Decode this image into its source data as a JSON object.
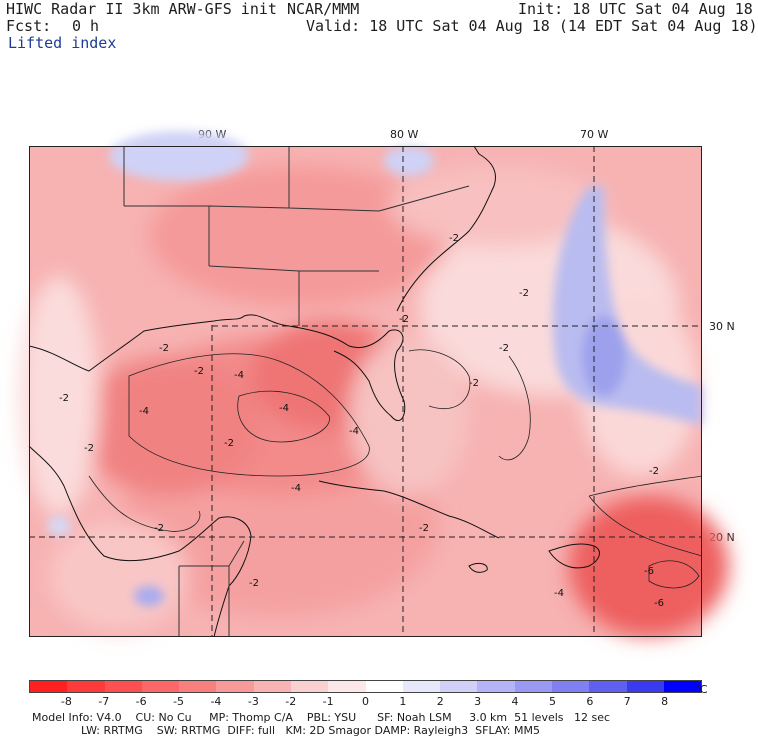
{
  "header": {
    "model_title": "HIWC Radar II 3km ARW-GFS init",
    "org": "NCAR/MMM",
    "init": "Init: 18 UTC Sat 04 Aug 18",
    "fcst_label": "Fcst:",
    "fcst_value": "0 h",
    "valid": "Valid: 18 UTC Sat 04 Aug 18 (14 EDT Sat 04 Aug 18)",
    "field": "Lifted index"
  },
  "map": {
    "longitude_labels": [
      "90 W",
      "80 W",
      "70 W"
    ],
    "latitude_labels": [
      "30 N",
      "20 N"
    ],
    "contour_labels": [
      "-2",
      "-4",
      "-6",
      "-2",
      "-2",
      "-2",
      "-4",
      "-4",
      "-4",
      "-2",
      "-2",
      "-4",
      "-6",
      "-2",
      "-2",
      "-4",
      "-2",
      "-2",
      "-2",
      "-2",
      "-2",
      "-2"
    ]
  },
  "colorbar": {
    "labels": [
      "-8",
      "-7",
      "-6",
      "-5",
      "-4",
      "-3",
      "-2",
      "-1",
      "0",
      "1",
      "2",
      "3",
      "4",
      "5",
      "6",
      "7",
      "8"
    ],
    "unit": "°C",
    "colors": [
      "#ff2020",
      "#ff3a3a",
      "#fe5050",
      "#fc6868",
      "#fa8080",
      "#f89a9a",
      "#f8b4b4",
      "#fad0d0",
      "#fce8e8",
      "#ffffff",
      "#e8e8fc",
      "#d0d0f8",
      "#b4b4f6",
      "#9a9af4",
      "#8080f2",
      "#6060f0",
      "#3a3aee",
      "#0000ff"
    ]
  },
  "model_info": {
    "line1": "Model Info: V4.0    CU: No Cu     MP: Thomp C/A    PBL: YSU      SF: Noah LSM     3.0 km  51 levels   12 sec",
    "line2": "              LW: RRTMG    SW: RRTMG  DIFF: full   KM: 2D Smagor DAMP: Rayleigh3  SFLAY: MM5"
  }
}
